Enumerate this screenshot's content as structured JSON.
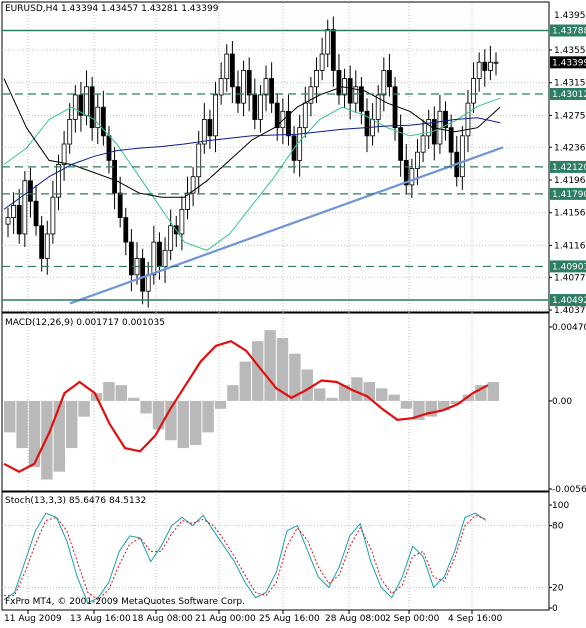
{
  "colors": {
    "bg": "#ffffff",
    "grid": "#c0c0c0",
    "candle_up": "#ffffff",
    "candle_down": "#000000",
    "hline": "#2e7d66",
    "trendline": "#6e96d8",
    "ma_fast": "#33c78a",
    "ma_mid": "#000000",
    "ma_slow": "#0b1f8c",
    "macd_hist": "#b9b9b9",
    "macd_signal": "#e01010",
    "stoch_main": "#1aa0b0",
    "stoch_signal": "#e01010",
    "tag_bg": "#2e7d66",
    "tag_text": "#ffffff",
    "price_tag_bg": "#000000"
  },
  "chart_data": [
    {
      "type": "candlestick",
      "title": "EURUSD,H4  1.43394 1.43457 1.43281 1.43399",
      "symbol": "EURUSD",
      "timeframe": "H4",
      "ohlc_header": {
        "open": 1.43394,
        "high": 1.43457,
        "low": 1.43281,
        "close": 1.43399
      },
      "ylim": [
        1.4037,
        1.4399
      ],
      "y_ticks": [
        1.4355,
        1.4315,
        1.4275,
        1.4236,
        1.4196,
        1.4156,
        1.4116,
        1.4077,
        1.4037
      ],
      "y_tick_labels": [
        "1.43550",
        "1.43150",
        "1.42750",
        "1.42360",
        "1.41960",
        "1.41560",
        "1.41160",
        "1.40770",
        "1.40370"
      ],
      "top_tick_label": "1.43950",
      "current_price_label": "1.43399",
      "horizontal_levels": [
        {
          "label": "1.43788",
          "style": "solid"
        },
        {
          "label": "1.43012",
          "style": "dashed"
        },
        {
          "label": "1.42120",
          "style": "dashed"
        },
        {
          "label": "1.41790",
          "style": "dashed"
        },
        {
          "label": "1.40903",
          "style": "dashed"
        },
        {
          "label": "1.40492",
          "style": "solid"
        }
      ],
      "x_ticks": [
        "11 Aug 2009",
        "13 Aug 16:00",
        "18 Aug 08:00",
        "21 Aug 00:00",
        "25 Aug 16:00",
        "28 Aug 08:00",
        "2 Sep 00:00",
        "4 Sep 16:00"
      ],
      "candles_close": [
        1.415,
        1.4165,
        1.413,
        1.4195,
        1.417,
        1.414,
        1.41,
        1.413,
        1.4175,
        1.4215,
        1.424,
        1.427,
        1.43,
        1.4275,
        1.431,
        1.426,
        1.4285,
        1.425,
        1.422,
        1.418,
        1.415,
        1.412,
        1.408,
        1.41,
        1.406,
        1.408,
        1.412,
        1.409,
        1.411,
        1.414,
        1.413,
        1.416,
        1.418,
        1.42,
        1.424,
        1.427,
        1.425,
        1.43,
        1.432,
        1.435,
        1.431,
        1.429,
        1.433,
        1.43,
        1.427,
        1.43,
        1.432,
        1.429,
        1.426,
        1.428,
        1.425,
        1.422,
        1.426,
        1.429,
        1.431,
        1.433,
        1.435,
        1.438,
        1.433,
        1.43,
        1.432,
        1.429,
        1.431,
        1.428,
        1.425,
        1.427,
        1.43,
        1.433,
        1.431,
        1.426,
        1.422,
        1.419,
        1.421,
        1.423,
        1.425,
        1.427,
        1.424,
        1.428,
        1.426,
        1.423,
        1.42,
        1.425,
        1.429,
        1.432,
        1.434,
        1.433,
        1.434,
        1.434
      ],
      "moving_averages": [
        {
          "name": "fast",
          "values": [
            1.4215,
            1.4235,
            1.427,
            1.4285,
            1.427,
            1.424,
            1.42,
            1.416,
            1.412,
            1.411,
            1.413,
            1.4165,
            1.42,
            1.424,
            1.427,
            1.4285,
            1.4275,
            1.426,
            1.425,
            1.4255,
            1.4268,
            1.4286,
            1.4296
          ]
        },
        {
          "name": "mid",
          "values": [
            1.432,
            1.426,
            1.422,
            1.4215,
            1.4205,
            1.4195,
            1.418,
            1.4175,
            1.4175,
            1.4195,
            1.422,
            1.4245,
            1.426,
            1.4285,
            1.43,
            1.431,
            1.4305,
            1.429,
            1.428,
            1.426,
            1.4255,
            1.426,
            1.4285
          ]
        },
        {
          "name": "slow",
          "values": [
            1.416,
            1.418,
            1.42,
            1.4215,
            1.4225,
            1.4232,
            1.4235,
            1.4237,
            1.424,
            1.4244,
            1.4247,
            1.425,
            1.4251,
            1.4252,
            1.4255,
            1.4258,
            1.426,
            1.4262,
            1.4263,
            1.4266,
            1.427,
            1.4272,
            1.4266
          ]
        }
      ],
      "trendline": {
        "from": 1.4045,
        "to": 1.4236
      }
    },
    {
      "type": "area",
      "title": "MACD(12,26,9) 0.001717 0.001035",
      "macd_value": 0.001717,
      "signal_value": 0.001035,
      "ylim": [
        -0.0056,
        0.0047
      ],
      "y_tick_labels": [
        "0.00470",
        "0.00",
        "-0.00560"
      ],
      "histogram": [
        -0.002,
        -0.003,
        -0.0042,
        -0.005,
        -0.0045,
        -0.003,
        -0.001,
        0.0005,
        0.0012,
        0.001,
        0.0002,
        -0.0008,
        -0.0018,
        -0.0025,
        -0.003,
        -0.0028,
        -0.002,
        -0.0005,
        0.001,
        0.0025,
        0.0038,
        0.0045,
        0.004,
        0.003,
        0.002,
        0.0008,
        0.0002,
        0.001,
        0.0015,
        0.0012,
        0.0008,
        0.0004,
        -0.0005,
        -0.0012,
        -0.001,
        -0.0006,
        -0.0002,
        0.0004,
        0.001,
        0.0012
      ],
      "signal": [
        -0.004,
        -0.0045,
        -0.004,
        -0.002,
        0.0005,
        0.0012,
        0.0005,
        -0.0015,
        -0.003,
        -0.0032,
        -0.0022,
        -0.0005,
        0.001,
        0.0025,
        0.0035,
        0.0038,
        0.0032,
        0.002,
        0.0008,
        0.0002,
        0.0007,
        0.0013,
        0.0012,
        0.0007,
        0.0003,
        -0.0005,
        -0.0012,
        -0.0011,
        -0.0008,
        -0.0006,
        -0.0002,
        0.0005,
        0.001
      ]
    },
    {
      "type": "line",
      "title": "Stoch(13,3,3) 85.6476 84.5132",
      "main_value": 85.6476,
      "signal_value": 84.5132,
      "ylim": [
        0,
        100
      ],
      "y_tick_labels": [
        "100",
        "80",
        "20",
        "0"
      ],
      "series": [
        {
          "name": "main",
          "values": [
            8,
            15,
            45,
            75,
            92,
            88,
            65,
            30,
            5,
            10,
            25,
            55,
            70,
            68,
            45,
            60,
            80,
            88,
            80,
            90,
            75,
            60,
            45,
            25,
            10,
            15,
            35,
            75,
            80,
            55,
            30,
            20,
            40,
            70,
            82,
            45,
            20,
            10,
            30,
            60,
            50,
            20,
            30,
            55,
            88,
            92,
            85
          ]
        },
        {
          "name": "signal",
          "values": [
            12,
            12,
            35,
            62,
            85,
            88,
            75,
            45,
            15,
            8,
            18,
            42,
            62,
            68,
            55,
            55,
            72,
            85,
            82,
            86,
            80,
            66,
            50,
            32,
            15,
            12,
            25,
            60,
            78,
            65,
            40,
            24,
            32,
            60,
            78,
            58,
            28,
            14,
            22,
            50,
            55,
            30,
            26,
            48,
            80,
            90,
            86
          ]
        }
      ]
    }
  ],
  "footer": {
    "copyright": "FxPro MT4, © 2001-2009 MetaQuotes Software Corp."
  }
}
